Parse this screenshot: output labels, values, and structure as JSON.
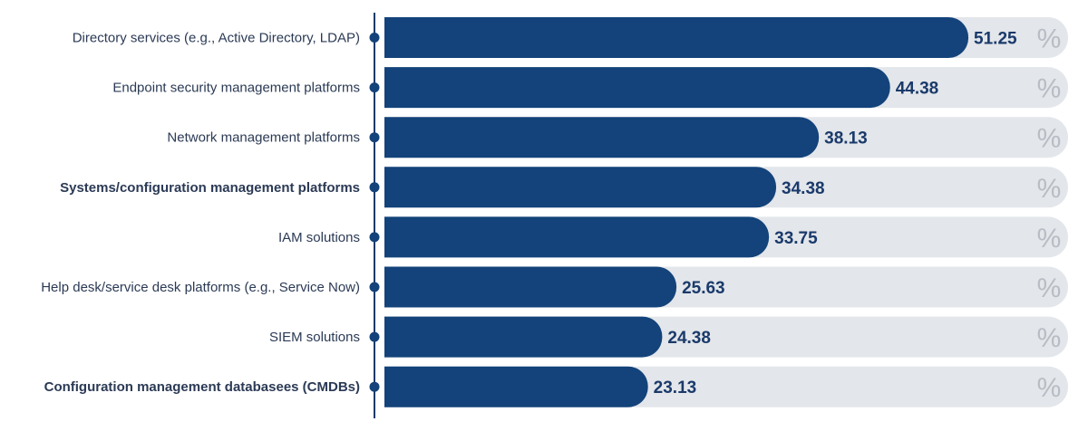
{
  "colors": {
    "bar": "#13437a",
    "track": "#e3e6ea",
    "axis": "#1a3a6b",
    "dot": "#13437a",
    "value_text": "#1a3a6b",
    "category_text": "#2b3a55",
    "percent_text": "#b8bcc4"
  },
  "chart_data": {
    "type": "bar",
    "orientation": "horizontal",
    "categories": [
      "Directory services (e.g., Active Directory, LDAP)",
      "Endpoint security management platforms",
      "Network management platforms",
      "Systems/configuration management platforms",
      "IAM solutions",
      "Help desk/service desk platforms (e.g., Service Now)",
      "SIEM solutions",
      "Configuration management databasees (CMDBs)"
    ],
    "bold_categories": [
      false,
      false,
      false,
      true,
      false,
      false,
      false,
      true
    ],
    "values": [
      51.25,
      44.38,
      38.13,
      34.38,
      33.75,
      25.63,
      24.38,
      23.13
    ],
    "value_labels": [
      "51.25",
      "44.38",
      "38.13",
      "34.38",
      "33.75",
      "25.63",
      "24.38",
      "23.13"
    ],
    "unit_label": "%",
    "title": "",
    "xlabel": "",
    "ylabel": "",
    "xlim": [
      0,
      60
    ],
    "grid": false,
    "legend": "none"
  }
}
